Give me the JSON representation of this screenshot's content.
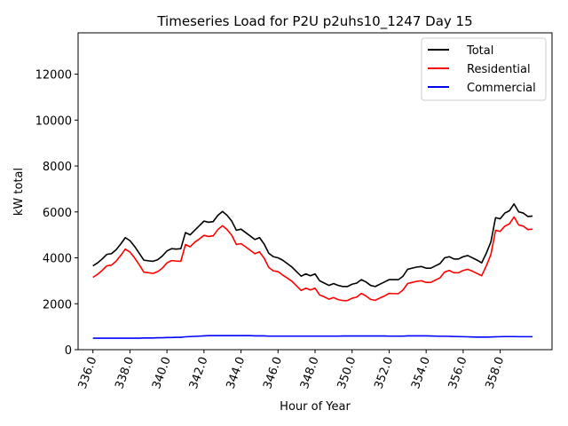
{
  "chart_data": {
    "type": "line",
    "title": "Timeseries Load for P2U p2uhs10_1247  Day 15",
    "xlabel": "Hour of Year",
    "ylabel": "kW total",
    "xlim": [
      335.2,
      360.8
    ],
    "ylim": [
      0,
      13800
    ],
    "xticks": [
      336,
      338,
      340,
      342,
      344,
      346,
      348,
      350,
      352,
      354,
      356,
      358
    ],
    "xtick_labels": [
      "336.0",
      "338.0",
      "340.0",
      "342.0",
      "344.0",
      "346.0",
      "348.0",
      "350.0",
      "352.0",
      "354.0",
      "356.0",
      "358.0"
    ],
    "yticks": [
      0,
      2000,
      4000,
      6000,
      8000,
      10000,
      12000
    ],
    "ytick_labels": [
      "0",
      "2000",
      "4000",
      "6000",
      "8000",
      "10000",
      "12000"
    ],
    "legend_position": "top-right",
    "grid": false,
    "x_start": 336.0,
    "x_step": 0.25,
    "series": [
      {
        "name": "Total",
        "color": "#000000",
        "values": [
          3650,
          3780,
          3950,
          4150,
          4180,
          4350,
          4600,
          4880,
          4750,
          4500,
          4200,
          3900,
          3870,
          3850,
          3920,
          4080,
          4300,
          4400,
          4380,
          4400,
          5100,
          5000,
          5200,
          5400,
          5600,
          5550,
          5580,
          5850,
          6020,
          5850,
          5600,
          5200,
          5250,
          5100,
          4950,
          4800,
          4880,
          4600,
          4200,
          4050,
          4000,
          3900,
          3750,
          3600,
          3400,
          3200,
          3300,
          3220,
          3300,
          3000,
          2900,
          2800,
          2880,
          2800,
          2750,
          2750,
          2850,
          2900,
          3050,
          2950,
          2800,
          2750,
          2850,
          2950,
          3050,
          3050,
          3050,
          3200,
          3500,
          3550,
          3600,
          3620,
          3550,
          3550,
          3650,
          3750,
          4000,
          4050,
          3950,
          3950,
          4050,
          4100,
          4000,
          3900,
          3780,
          4200,
          4700,
          5750,
          5700,
          5950,
          6050,
          6350,
          6000,
          5950,
          5800,
          5820
        ]
      },
      {
        "name": "Residential",
        "color": "#ff0000",
        "values": [
          3150,
          3280,
          3450,
          3650,
          3680,
          3850,
          4100,
          4380,
          4250,
          4000,
          3700,
          3380,
          3350,
          3320,
          3400,
          3550,
          3780,
          3880,
          3860,
          3850,
          4580,
          4480,
          4680,
          4820,
          4980,
          4930,
          4960,
          5230,
          5400,
          5230,
          4980,
          4580,
          4620,
          4480,
          4330,
          4180,
          4260,
          3980,
          3580,
          3430,
          3400,
          3250,
          3120,
          2980,
          2780,
          2580,
          2680,
          2600,
          2680,
          2380,
          2300,
          2200,
          2270,
          2180,
          2140,
          2140,
          2240,
          2290,
          2450,
          2340,
          2190,
          2150,
          2250,
          2340,
          2450,
          2440,
          2440,
          2600,
          2880,
          2930,
          2980,
          3000,
          2930,
          2930,
          3030,
          3130,
          3380,
          3450,
          3350,
          3350,
          3450,
          3500,
          3420,
          3320,
          3220,
          3650,
          4150,
          5200,
          5150,
          5380,
          5480,
          5780,
          5430,
          5380,
          5230,
          5250
        ]
      },
      {
        "name": "Commercial",
        "color": "#0000ff",
        "values": [
          500,
          500,
          500,
          500,
          500,
          500,
          500,
          500,
          500,
          500,
          500,
          510,
          510,
          510,
          520,
          520,
          530,
          530,
          540,
          540,
          560,
          570,
          580,
          590,
          600,
          610,
          610,
          610,
          610,
          610,
          610,
          610,
          610,
          610,
          610,
          600,
          600,
          600,
          590,
          590,
          590,
          590,
          590,
          590,
          590,
          590,
          590,
          590,
          590,
          590,
          590,
          590,
          590,
          590,
          595,
          595,
          595,
          595,
          595,
          595,
          595,
          595,
          595,
          595,
          590,
          590,
          590,
          590,
          600,
          600,
          600,
          600,
          600,
          595,
          590,
          585,
          585,
          580,
          575,
          570,
          565,
          560,
          555,
          550,
          550,
          550,
          555,
          560,
          565,
          570,
          570,
          570,
          565,
          565,
          565,
          565
        ]
      }
    ]
  }
}
